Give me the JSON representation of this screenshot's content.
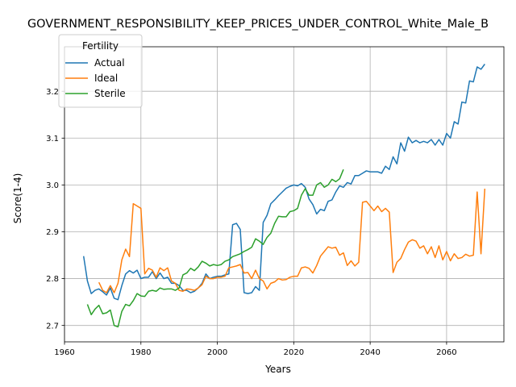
{
  "chart_data": {
    "type": "line",
    "title": "GOVERNMENT_RESPONSIBILITY_KEEP_PRICES_UNDER_CONTROL_White_Male_B",
    "xlabel": "Years",
    "ylabel": "Score(1-4)",
    "xlim": [
      1960,
      2075
    ],
    "ylim": [
      2.665,
      3.295
    ],
    "xticks": [
      1960,
      1980,
      2000,
      2020,
      2040,
      2060
    ],
    "yticks": [
      2.7,
      2.8,
      2.9,
      3.0,
      3.1,
      3.2
    ],
    "ytick_labels": [
      "2.7",
      "2.8",
      "2.9",
      "3.0",
      "3.1",
      "3.2"
    ],
    "grid": true,
    "legend": {
      "title": "Fertility",
      "placement": "top-left"
    },
    "series": [
      {
        "name": "Actual",
        "color": "#1f77b4",
        "x": [
          1965,
          1966,
          1967,
          1968,
          1969,
          1970,
          1971,
          1972,
          1973,
          1974,
          1975,
          1976,
          1977,
          1978,
          1979,
          1980,
          1981,
          1982,
          1983,
          1984,
          1985,
          1986,
          1987,
          1988,
          1989,
          1990,
          1991,
          1992,
          1993,
          1994,
          1995,
          1996,
          1997,
          1998,
          1999,
          2000,
          2001,
          2002,
          2003,
          2004,
          2005,
          2006,
          2007,
          2008,
          2009,
          2010,
          2011,
          2012,
          2013,
          2014,
          2015,
          2016,
          2017,
          2018,
          2019,
          2020,
          2021,
          2022,
          2023,
          2024,
          2025,
          2026,
          2027,
          2028,
          2029,
          2030,
          2031,
          2032,
          2033,
          2034,
          2035,
          2036,
          2037,
          2038,
          2039,
          2040,
          2041,
          2042,
          2043,
          2044,
          2045,
          2046,
          2047,
          2048,
          2049,
          2050,
          2051,
          2052,
          2053,
          2054,
          2055,
          2056,
          2057,
          2058,
          2059,
          2060,
          2061,
          2062,
          2063,
          2064,
          2065,
          2066,
          2067,
          2068,
          2069,
          2070
        ],
        "y": [
          2.848,
          2.795,
          2.768,
          2.775,
          2.778,
          2.772,
          2.765,
          2.78,
          2.758,
          2.755,
          2.785,
          2.81,
          2.817,
          2.812,
          2.818,
          2.8,
          2.803,
          2.803,
          2.815,
          2.8,
          2.812,
          2.8,
          2.803,
          2.79,
          2.79,
          2.785,
          2.775,
          2.775,
          2.77,
          2.773,
          2.78,
          2.79,
          2.81,
          2.8,
          2.803,
          2.805,
          2.805,
          2.808,
          2.81,
          2.915,
          2.918,
          2.905,
          2.77,
          2.768,
          2.77,
          2.783,
          2.775,
          2.92,
          2.935,
          2.96,
          2.968,
          2.977,
          2.985,
          2.993,
          2.997,
          3.0,
          2.998,
          3.003,
          2.995,
          2.97,
          2.958,
          2.938,
          2.948,
          2.945,
          2.965,
          2.968,
          2.985,
          2.998,
          2.995,
          3.005,
          3.002,
          3.02,
          3.02,
          3.025,
          3.03,
          3.028,
          3.028,
          3.028,
          3.025,
          3.04,
          3.033,
          3.06,
          3.045,
          3.09,
          3.072,
          3.102,
          3.09,
          3.095,
          3.09,
          3.093,
          3.09,
          3.097,
          3.085,
          3.097,
          3.085,
          3.11,
          3.1,
          3.135,
          3.13,
          3.177,
          3.175,
          3.222,
          3.22,
          3.252,
          3.247,
          3.258
        ]
      },
      {
        "name": "Ideal",
        "color": "#ff7f0e",
        "x": [
          1969,
          1970,
          1971,
          1972,
          1973,
          1974,
          1975,
          1976,
          1977,
          1978,
          1979,
          1980,
          1981,
          1982,
          1983,
          1984,
          1985,
          1986,
          1987,
          1988,
          1989,
          1990,
          1991,
          1992,
          1993,
          1994,
          1995,
          1996,
          1997,
          1998,
          1999,
          2000,
          2001,
          2002,
          2003,
          2004,
          2005,
          2006,
          2007,
          2008,
          2009,
          2010,
          2011,
          2012,
          2013,
          2014,
          2015,
          2016,
          2017,
          2018,
          2019,
          2020,
          2021,
          2022,
          2023,
          2024,
          2025,
          2026,
          2027,
          2028,
          2029,
          2030,
          2031,
          2032,
          2033,
          2034,
          2035,
          2036,
          2037,
          2038,
          2039,
          2040,
          2041,
          2042,
          2043,
          2044,
          2045,
          2046,
          2047,
          2048,
          2049,
          2050,
          2051,
          2052,
          2053,
          2054,
          2055,
          2056,
          2057,
          2058,
          2059,
          2060,
          2061,
          2062,
          2063,
          2064,
          2065,
          2066,
          2067,
          2068,
          2069,
          2070
        ],
        "y": [
          2.792,
          2.775,
          2.77,
          2.785,
          2.77,
          2.79,
          2.84,
          2.863,
          2.847,
          2.96,
          2.955,
          2.95,
          2.81,
          2.822,
          2.818,
          2.803,
          2.823,
          2.817,
          2.823,
          2.795,
          2.79,
          2.775,
          2.773,
          2.778,
          2.777,
          2.775,
          2.78,
          2.787,
          2.805,
          2.8,
          2.8,
          2.803,
          2.803,
          2.805,
          2.823,
          2.825,
          2.827,
          2.83,
          2.812,
          2.813,
          2.8,
          2.818,
          2.8,
          2.795,
          2.778,
          2.79,
          2.793,
          2.8,
          2.797,
          2.798,
          2.803,
          2.805,
          2.805,
          2.823,
          2.825,
          2.822,
          2.812,
          2.828,
          2.848,
          2.858,
          2.868,
          2.865,
          2.867,
          2.85,
          2.855,
          2.828,
          2.838,
          2.827,
          2.835,
          2.963,
          2.965,
          2.955,
          2.945,
          2.955,
          2.943,
          2.95,
          2.942,
          2.813,
          2.835,
          2.843,
          2.862,
          2.878,
          2.883,
          2.88,
          2.865,
          2.87,
          2.853,
          2.868,
          2.845,
          2.87,
          2.84,
          2.858,
          2.838,
          2.853,
          2.843,
          2.845,
          2.852,
          2.848,
          2.85,
          2.985,
          2.853,
          2.992
        ]
      },
      {
        "name": "Sterile",
        "color": "#2ca02c",
        "x": [
          1966,
          1967,
          1968,
          1969,
          1970,
          1971,
          1972,
          1973,
          1974,
          1975,
          1976,
          1977,
          1978,
          1979,
          1980,
          1981,
          1982,
          1983,
          1984,
          1985,
          1986,
          1987,
          1988,
          1989,
          1990,
          1991,
          1992,
          1993,
          1994,
          1995,
          1996,
          1997,
          1998,
          1999,
          2000,
          2001,
          2002,
          2003,
          2004,
          2005,
          2006,
          2007,
          2008,
          2009,
          2010,
          2011,
          2012,
          2013,
          2014,
          2015,
          2016,
          2017,
          2018,
          2019,
          2020,
          2021,
          2022,
          2023,
          2024,
          2025,
          2026,
          2027,
          2028,
          2029,
          2030,
          2031,
          2032,
          2033
        ],
        "y": [
          2.745,
          2.723,
          2.735,
          2.743,
          2.725,
          2.727,
          2.733,
          2.7,
          2.697,
          2.73,
          2.745,
          2.742,
          2.753,
          2.768,
          2.763,
          2.762,
          2.773,
          2.775,
          2.773,
          2.78,
          2.777,
          2.778,
          2.778,
          2.775,
          2.78,
          2.808,
          2.812,
          2.822,
          2.817,
          2.825,
          2.837,
          2.833,
          2.827,
          2.83,
          2.828,
          2.83,
          2.837,
          2.84,
          2.847,
          2.85,
          2.853,
          2.858,
          2.862,
          2.867,
          2.885,
          2.88,
          2.873,
          2.888,
          2.897,
          2.918,
          2.933,
          2.932,
          2.932,
          2.943,
          2.945,
          2.95,
          2.978,
          2.992,
          2.978,
          2.978,
          3.0,
          3.005,
          2.995,
          3.0,
          3.012,
          3.007,
          3.013,
          3.033
        ]
      }
    ]
  }
}
